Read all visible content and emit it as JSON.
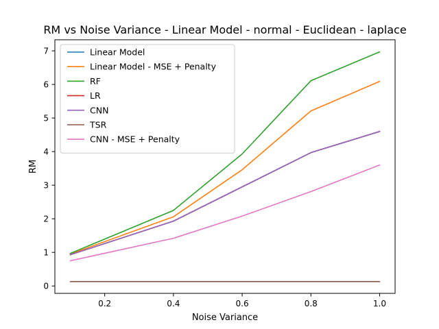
{
  "chart_data": {
    "type": "line",
    "title": "RM vs Noise Variance - Linear Model - normal - Euclidean - laplace",
    "xlabel": "Noise Variance",
    "ylabel": "RM",
    "xlim": [
      0.055,
      1.045
    ],
    "ylim": [
      -0.22,
      7.33
    ],
    "x": [
      0.1,
      0.4,
      0.6,
      0.8,
      1.0
    ],
    "xticks": [
      0.2,
      0.4,
      0.6,
      0.8,
      1.0
    ],
    "xtick_labels": [
      "0.2",
      "0.4",
      "0.6",
      "0.8",
      "1.0"
    ],
    "yticks": [
      0,
      1,
      2,
      3,
      4,
      5,
      6,
      7
    ],
    "ytick_labels": [
      "0",
      "1",
      "2",
      "3",
      "4",
      "5",
      "6",
      "7"
    ],
    "grid": false,
    "legend_position": "top-left",
    "series": [
      {
        "name": "Linear Model",
        "color": "#1f77b4",
        "values": [
          0.93,
          1.93,
          2.95,
          3.97,
          4.6
        ]
      },
      {
        "name": "Linear Model - MSE + Penalty",
        "color": "#ff7f0e",
        "values": [
          0.95,
          2.06,
          3.46,
          5.21,
          6.09
        ]
      },
      {
        "name": "RF",
        "color": "#2ca02c",
        "values": [
          0.97,
          2.25,
          3.93,
          6.11,
          6.97
        ]
      },
      {
        "name": "LR",
        "color": "#d62728",
        "values": [
          0.93,
          1.93,
          2.95,
          3.97,
          4.6
        ]
      },
      {
        "name": "CNN",
        "color": "#9467bd",
        "values": [
          0.93,
          1.93,
          2.95,
          3.97,
          4.6
        ]
      },
      {
        "name": "TSR",
        "color": "#8c564b",
        "values": [
          0.13,
          0.13,
          0.13,
          0.13,
          0.13
        ]
      },
      {
        "name": "CNN - MSE + Penalty",
        "color": "#e377c2",
        "values": [
          0.75,
          1.42,
          2.08,
          2.81,
          3.6
        ]
      }
    ]
  }
}
